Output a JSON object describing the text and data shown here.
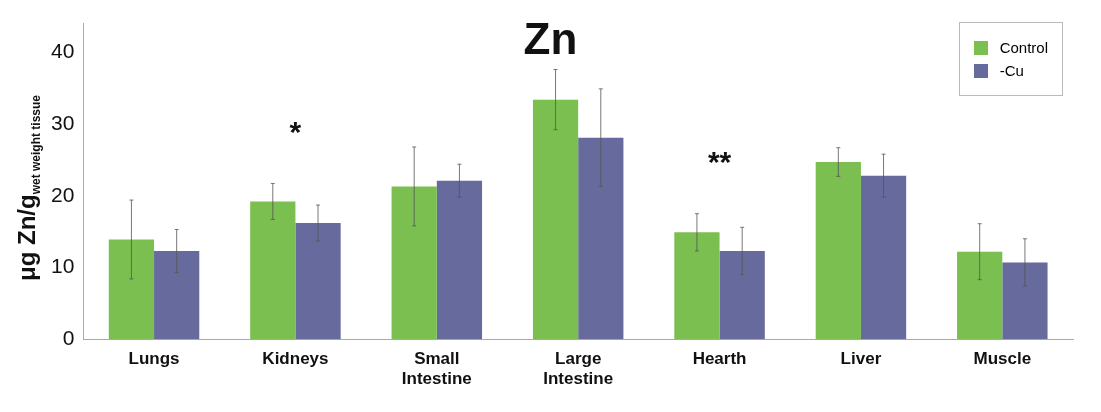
{
  "chart_data": {
    "type": "bar",
    "title": "Zn",
    "ylabel": "μg Zn/g$_{wet weight tissue}$",
    "categories": [
      "Lungs",
      "Kidneys",
      "Small Intestine",
      "Large Intestine",
      "Hearth",
      "Liver",
      "Muscle"
    ],
    "series": [
      {
        "name": "Control",
        "color": "#7abf50",
        "values": [
          13.9,
          19.2,
          21.3,
          33.4,
          14.9,
          24.7,
          12.2
        ],
        "errors": [
          5.5,
          2.5,
          5.5,
          4.2,
          2.6,
          2,
          3.9
        ]
      },
      {
        "name": "-Cu",
        "color": "#676a9c",
        "values": [
          12.3,
          16.2,
          22.1,
          28.1,
          12.3,
          22.8,
          10.7
        ],
        "errors": [
          3,
          2.5,
          2.3,
          6.8,
          3.3,
          3,
          3.3
        ]
      }
    ],
    "ylim": [
      0,
      44
    ],
    "yticks": [
      0,
      10,
      20,
      30,
      40
    ],
    "grid": false,
    "legend": "top right",
    "annotations": [
      "*",
      "**"
    ]
  }
}
